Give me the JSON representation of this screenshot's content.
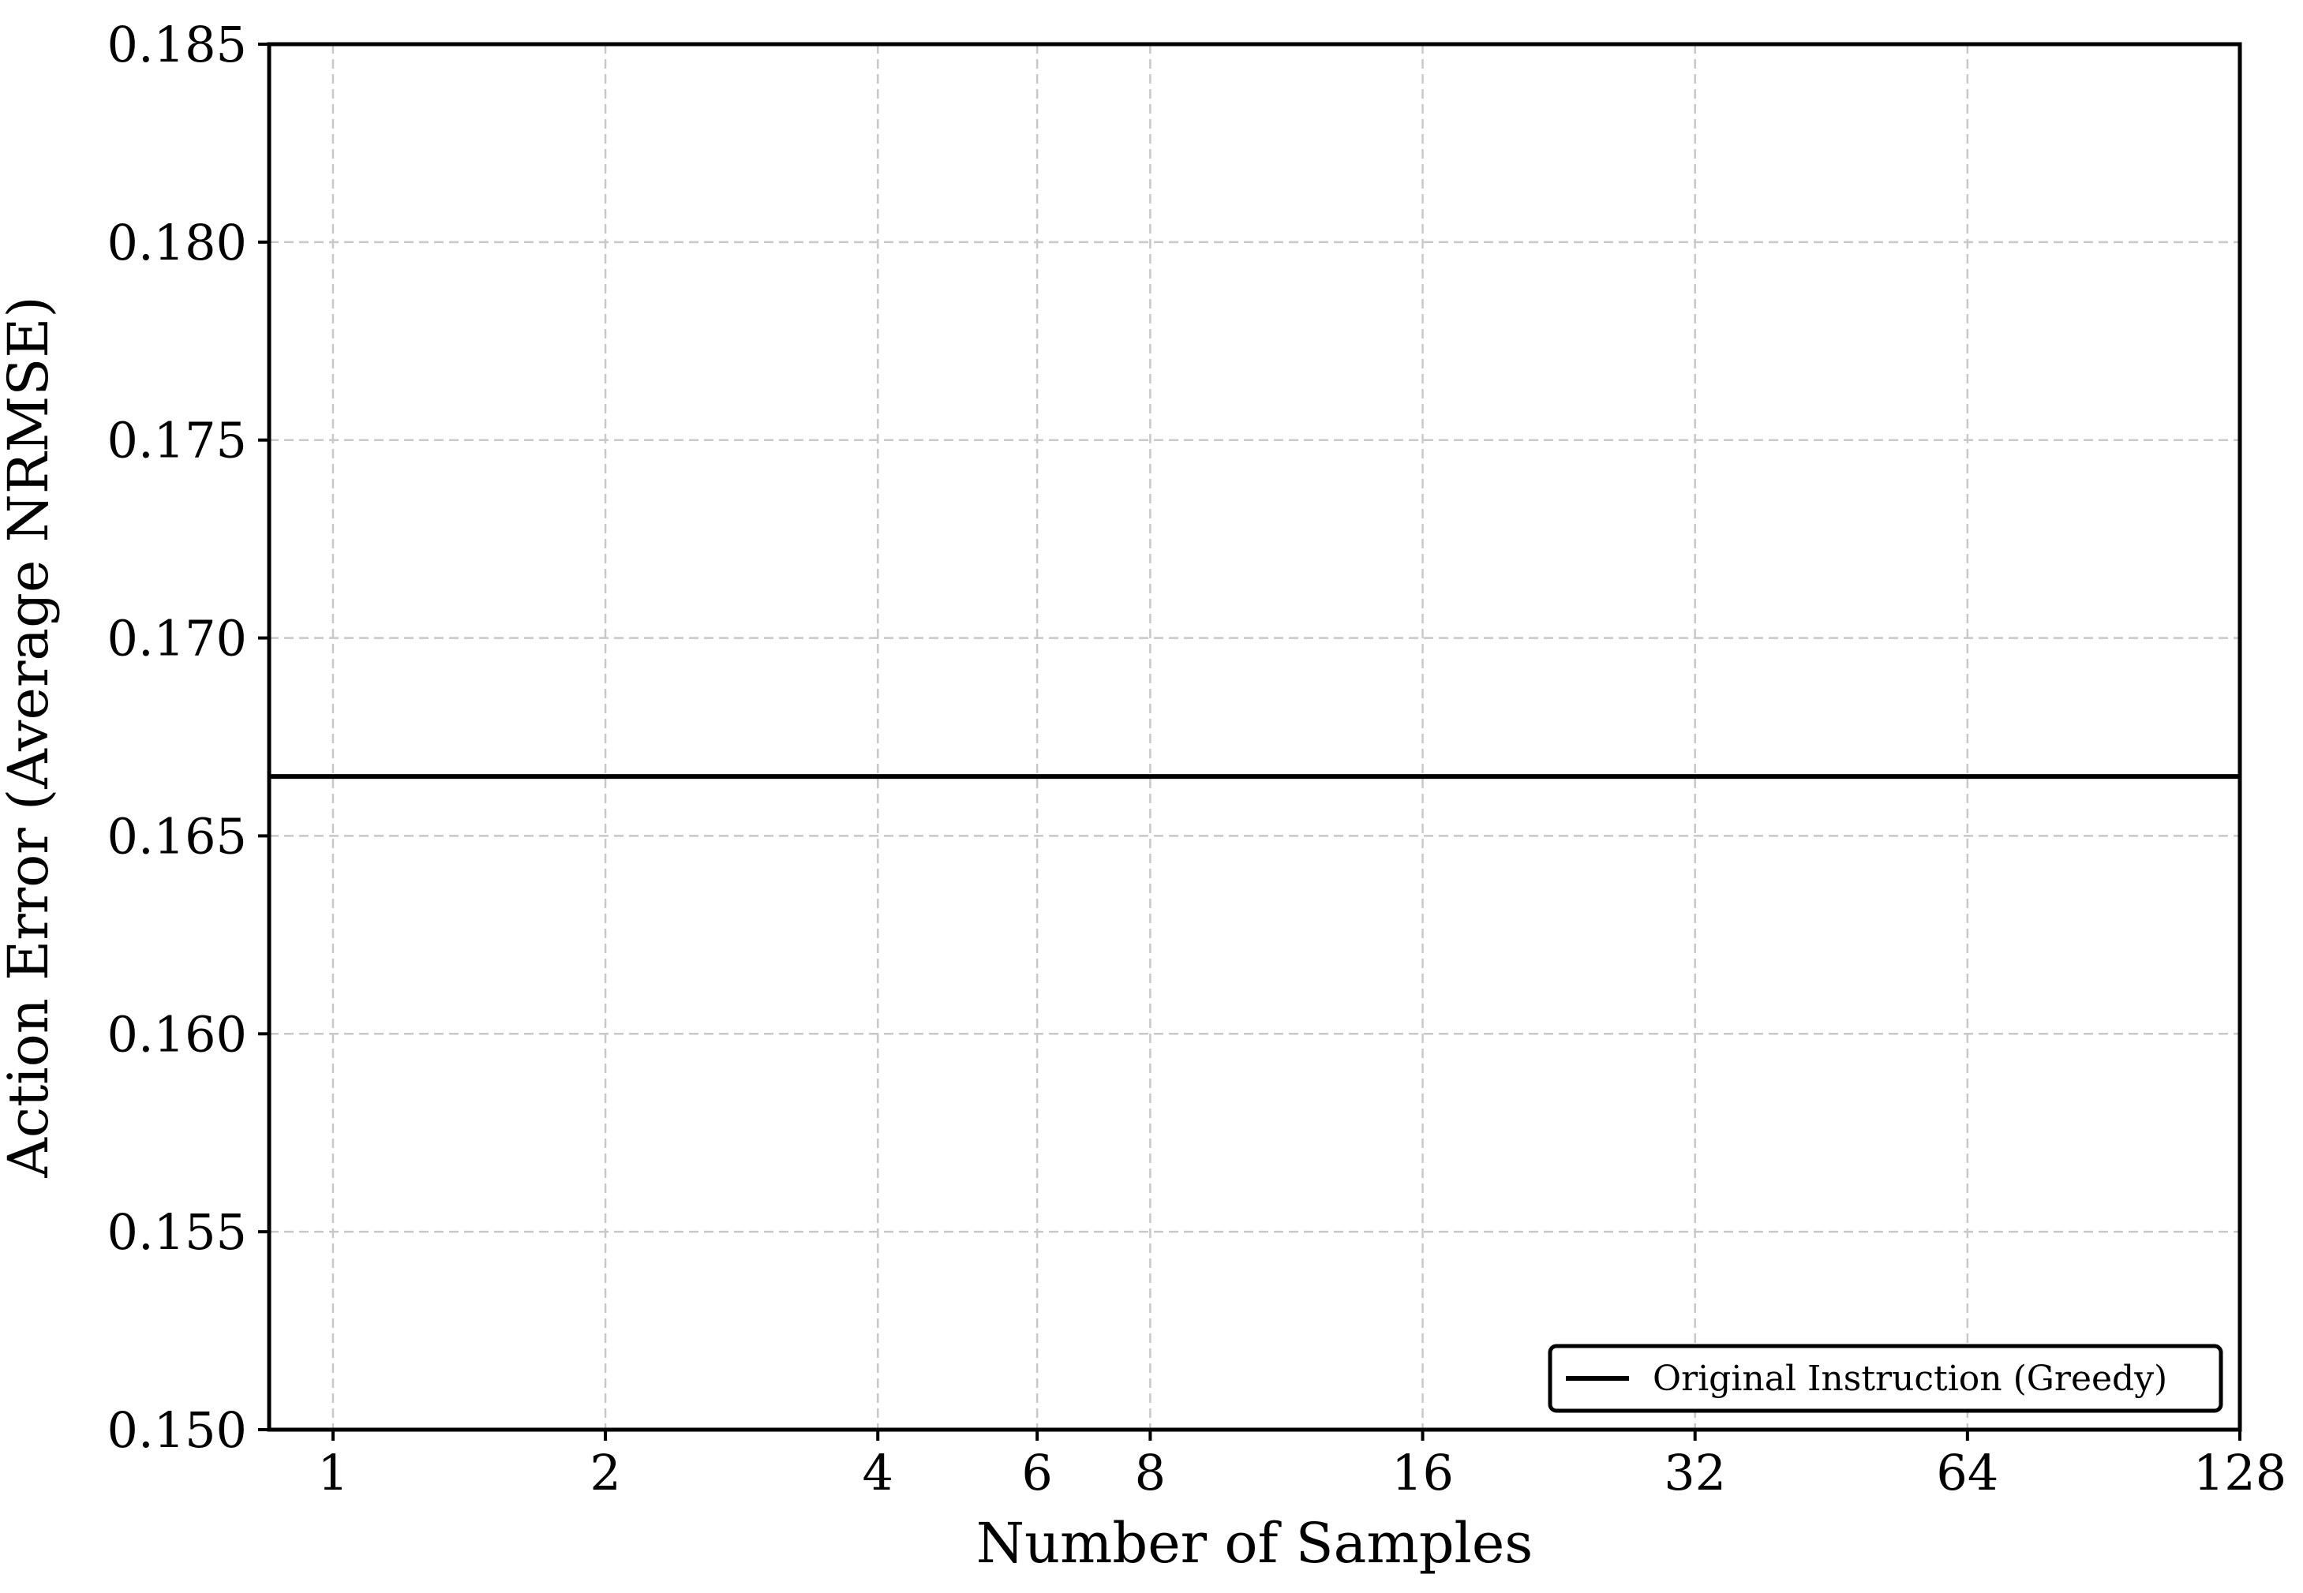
{
  "chart_data": {
    "type": "line",
    "title": "",
    "xlabel": "Number of Samples",
    "ylabel": "Action Error (Average NRMSE)",
    "x_scale": "log2",
    "xlim": [
      0.85,
      128
    ],
    "ylim": [
      0.15,
      0.185
    ],
    "x_ticks": [
      1,
      2,
      4,
      6,
      8,
      16,
      32,
      64,
      128
    ],
    "x_tick_labels": [
      "1",
      "2",
      "4",
      "6",
      "8",
      "16",
      "32",
      "64",
      "128"
    ],
    "y_ticks": [
      0.15,
      0.155,
      0.16,
      0.165,
      0.17,
      0.175,
      0.18,
      0.185
    ],
    "y_tick_labels": [
      "0.150",
      "0.155",
      "0.160",
      "0.165",
      "0.170",
      "0.175",
      "0.180",
      "0.185"
    ],
    "grid": true,
    "legend_position": "bottom-right",
    "series": [
      {
        "name": "Original Instruction (Greedy)",
        "kind": "horizontal-line",
        "y": 0.1665,
        "color": "#000000"
      }
    ]
  }
}
